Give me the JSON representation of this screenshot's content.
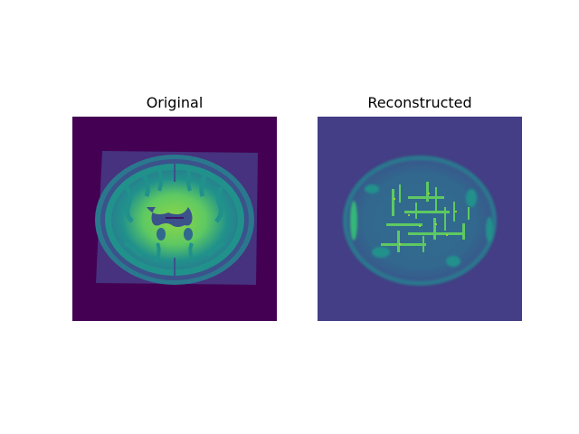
{
  "figure": {
    "panels": [
      {
        "title": "Original"
      },
      {
        "title": "Reconstructed"
      }
    ]
  },
  "colors": {
    "original_background": "#440154",
    "reconstructed_background": "#433e85",
    "colormap": "viridis"
  }
}
